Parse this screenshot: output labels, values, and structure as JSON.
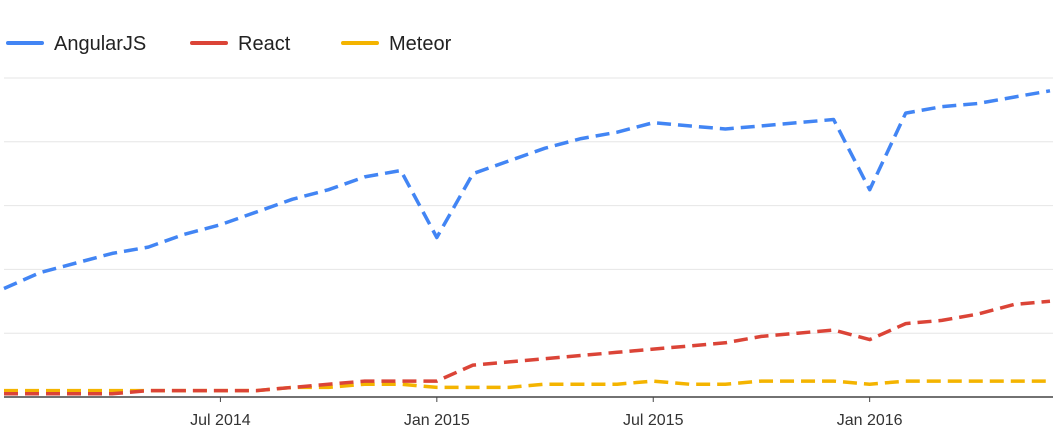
{
  "chart_data": {
    "type": "line",
    "title": "",
    "xlabel": "",
    "ylabel": "",
    "x_tick_labels": [
      "Jul 2014",
      "Jan 2015",
      "Jul 2015",
      "Jan 2016"
    ],
    "y_tick_labels": [],
    "grid": "horizontal",
    "legend_position": "top-left",
    "line_style": "dashed",
    "x_range": [
      "2014-01",
      "2016-06"
    ],
    "ylim": [
      0,
      100
    ],
    "x": [
      "2014-01",
      "2014-02",
      "2014-03",
      "2014-04",
      "2014-05",
      "2014-06",
      "2014-07",
      "2014-08",
      "2014-09",
      "2014-10",
      "2014-11",
      "2014-12",
      "2015-01",
      "2015-02",
      "2015-03",
      "2015-04",
      "2015-05",
      "2015-06",
      "2015-07",
      "2015-08",
      "2015-09",
      "2015-10",
      "2015-11",
      "2015-12",
      "2016-01",
      "2016-02",
      "2016-03",
      "2016-04",
      "2016-05",
      "2016-06"
    ],
    "series": [
      {
        "name": "AngularJS",
        "color": "#4285f4",
        "values": [
          34,
          39,
          42,
          45,
          47,
          51,
          54,
          58,
          62,
          65,
          69,
          71,
          50,
          70,
          74,
          78,
          81,
          83,
          86,
          85,
          84,
          85,
          86,
          87,
          65,
          89,
          91,
          92,
          94,
          96
        ]
      },
      {
        "name": "React",
        "color": "#db4437",
        "values": [
          1,
          1,
          1,
          1,
          2,
          2,
          2,
          2,
          3,
          4,
          5,
          5,
          5,
          10,
          11,
          12,
          13,
          14,
          15,
          16,
          17,
          19,
          20,
          21,
          18,
          23,
          24,
          26,
          29,
          30
        ]
      },
      {
        "name": "Meteor",
        "color": "#f4b400",
        "values": [
          2,
          2,
          2,
          2,
          2,
          2,
          2,
          2,
          3,
          3,
          4,
          4,
          3,
          3,
          3,
          4,
          4,
          4,
          5,
          4,
          4,
          5,
          5,
          5,
          4,
          5,
          5,
          5,
          5,
          5
        ]
      }
    ]
  }
}
